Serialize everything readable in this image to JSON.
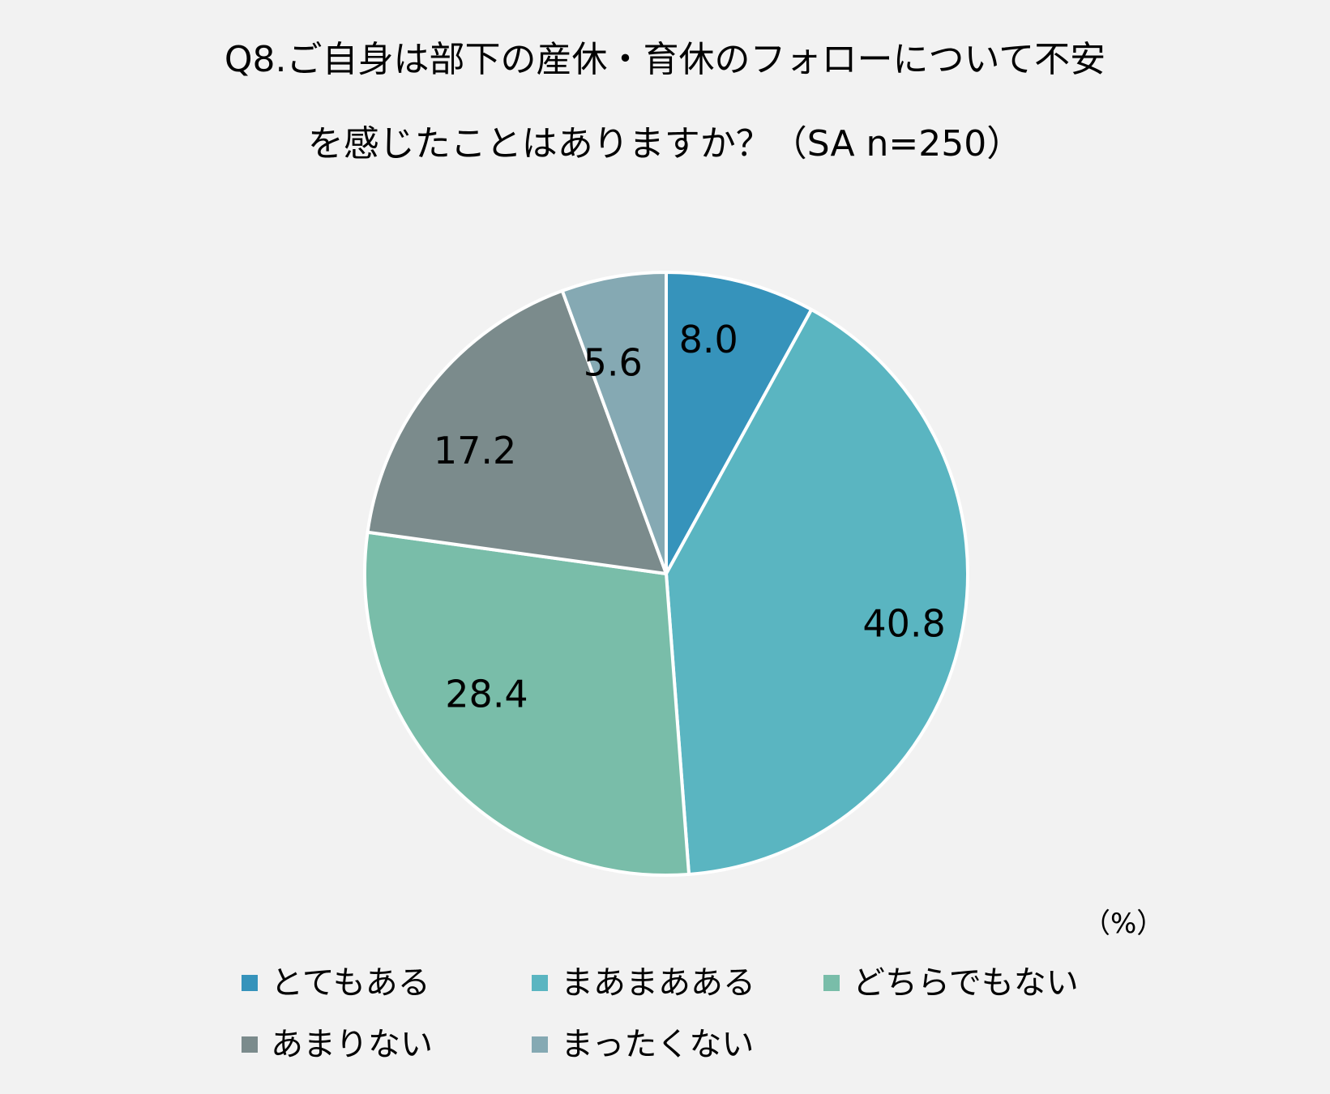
{
  "chart_data": {
    "type": "pie",
    "title_line1": "Q8.ご自身は部下の産休・育休のフォローについて不安",
    "title_line2": "を感じたことはありますか？（SA n=250）",
    "unit": "（%）",
    "slices": [
      {
        "label": "とてもある",
        "value": 8.0,
        "display": "8.0",
        "color": "#3693bb"
      },
      {
        "label": "まあまあある",
        "value": 40.8,
        "display": "40.8",
        "color": "#5ab5c1"
      },
      {
        "label": "どちらでもない",
        "value": 28.4,
        "display": "28.4",
        "color": "#79bda9"
      },
      {
        "label": "あまりない",
        "value": 17.2,
        "display": "17.2",
        "color": "#7b8b8c"
      },
      {
        "label": "まったくない",
        "value": 5.6,
        "display": "5.6",
        "color": "#85a9b3"
      }
    ],
    "legend_placement": "bottom",
    "start": "12 o'clock",
    "direction": "clockwise"
  }
}
